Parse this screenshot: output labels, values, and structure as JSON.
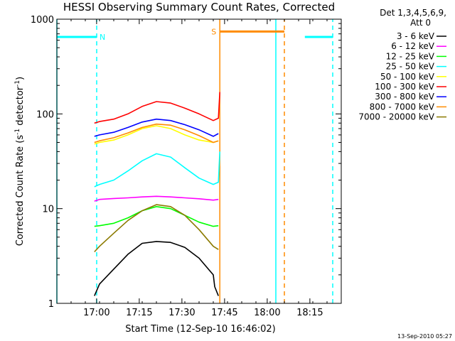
{
  "chart_data": {
    "type": "line",
    "title": "HESSI Observing Summary Count Rates, Corrected",
    "xlabel": "Start Time (12-Sep-10 16:46:02)",
    "ylabel_prefix": "Corrected Count Rate (s",
    "ylabel_sup1": "-1",
    "ylabel_mid": " detector",
    "ylabel_sup2": "-1",
    "ylabel_suffix": ")",
    "y_scale": "log",
    "ylim": [
      1,
      1000
    ],
    "xlim_minutes_from_start": [
      0,
      100
    ],
    "x_ticks": [
      {
        "label": "17:00",
        "minutes": 13.97
      },
      {
        "label": "17:15",
        "minutes": 28.97
      },
      {
        "label": "17:30",
        "minutes": 43.97
      },
      {
        "label": "17:45",
        "minutes": 58.97
      },
      {
        "label": "18:00",
        "minutes": 73.97
      },
      {
        "label": "18:15",
        "minutes": 88.97
      }
    ],
    "y_ticks": [
      {
        "label": "1",
        "value": 1
      },
      {
        "label": "10",
        "value": 10
      },
      {
        "label": "100",
        "value": 100
      },
      {
        "label": "1000",
        "value": 1000
      }
    ],
    "legend": {
      "header_line1": "Det 1,3,4,5,6,9,",
      "header_line2": "Att 0",
      "placement": "right"
    },
    "series": [
      {
        "name": "3 - 6 keV",
        "color": "#000000",
        "x": [
          13.2,
          15,
          20,
          25,
          30,
          35,
          40,
          45,
          50,
          55,
          55.5,
          56.8
        ],
        "y": [
          1.2,
          1.6,
          2.3,
          3.3,
          4.3,
          4.5,
          4.4,
          3.9,
          3.0,
          2.0,
          1.5,
          1.2
        ]
      },
      {
        "name": "6 - 12 keV",
        "color": "#ff00ff",
        "x": [
          13.2,
          15,
          20,
          25,
          30,
          35,
          40,
          45,
          50,
          55,
          56.8
        ],
        "y": [
          12,
          12.5,
          12.8,
          13,
          13.3,
          13.5,
          13.3,
          13,
          12.7,
          12.3,
          12.5
        ]
      },
      {
        "name": "12 - 25 keV",
        "color": "#00ff00",
        "x": [
          13.2,
          15,
          20,
          25,
          30,
          35,
          40,
          45,
          50,
          55,
          56.8
        ],
        "y": [
          6.5,
          6.6,
          7,
          8,
          9.5,
          10.5,
          10,
          8.5,
          7.2,
          6.5,
          6.6
        ]
      },
      {
        "name": "25 - 50 keV",
        "color": "#00ffff",
        "x": [
          13.2,
          15,
          20,
          25,
          30,
          35,
          40,
          45,
          50,
          55,
          56.8,
          57.3
        ],
        "y": [
          17,
          18,
          20,
          25,
          32,
          38,
          35,
          27,
          21,
          18,
          19,
          40
        ]
      },
      {
        "name": "50 - 100 keV",
        "color": "#ffff00",
        "x": [
          13.2,
          15,
          20,
          25,
          30,
          35,
          40,
          45,
          50,
          55,
          56.8
        ],
        "y": [
          48,
          50,
          53,
          60,
          70,
          75,
          70,
          60,
          53,
          50,
          52
        ]
      },
      {
        "name": "100 - 300 keV",
        "color": "#ff0000",
        "x": [
          13.2,
          15,
          20,
          25,
          30,
          35,
          40,
          45,
          50,
          55,
          56.8,
          57.3
        ],
        "y": [
          80,
          83,
          88,
          100,
          120,
          135,
          130,
          115,
          100,
          85,
          90,
          170
        ]
      },
      {
        "name": "300 - 800 keV",
        "color": "#0000ff",
        "x": [
          13.2,
          15,
          20,
          25,
          30,
          35,
          40,
          45,
          50,
          55,
          56.8
        ],
        "y": [
          58,
          60,
          64,
          72,
          82,
          88,
          85,
          77,
          68,
          58,
          62
        ]
      },
      {
        "name": "800 - 7000 keV",
        "color": "#ff8c00",
        "x": [
          13.2,
          15,
          20,
          25,
          30,
          35,
          40,
          45,
          50,
          55,
          56.8
        ],
        "y": [
          50,
          52,
          56,
          63,
          72,
          78,
          76,
          68,
          59,
          50,
          52
        ]
      },
      {
        "name": "7000 - 20000 keV",
        "color": "#8b7a00",
        "x": [
          13.2,
          15,
          20,
          25,
          30,
          35,
          40,
          45,
          50,
          55,
          56.8
        ],
        "y": [
          3.5,
          4.0,
          5.5,
          7.5,
          9.5,
          11,
          10.5,
          8.5,
          6,
          4.0,
          3.7
        ]
      }
    ],
    "flags": [
      {
        "label": "N",
        "color": "#00ffff",
        "segments": [
          {
            "x0": 0,
            "x1": 14,
            "y": 650
          },
          {
            "x0": 87.2,
            "x1": 97,
            "y": 650
          }
        ],
        "solid_vlines": [
          0,
          77
        ],
        "dashed_vlines": [
          14,
          97
        ]
      },
      {
        "label": "S",
        "color": "#ff8c00",
        "segments": [
          {
            "x0": 57.3,
            "x1": 80,
            "y": 740
          }
        ],
        "solid_vlines": [
          57.3
        ],
        "dashed_vlines": [
          80
        ]
      }
    ]
  },
  "footer": {
    "timestamp": "13-Sep-2010 05:27"
  }
}
